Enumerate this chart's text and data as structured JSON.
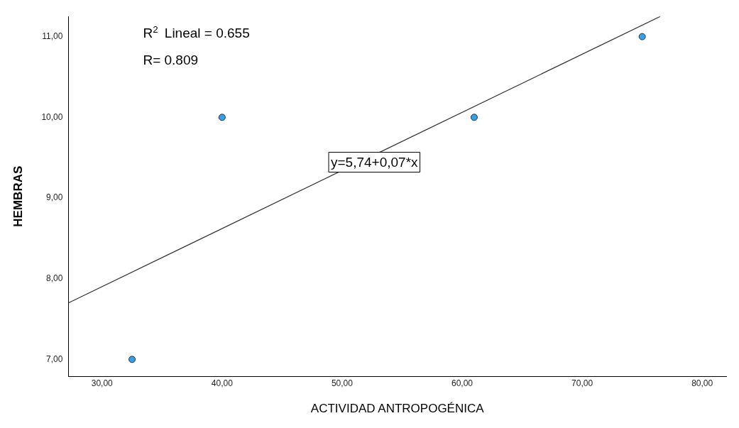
{
  "chart_data": {
    "type": "scatter",
    "xlabel": "ACTIVIDAD ANTROPOGÉNICA",
    "ylabel": "HEMBRAS",
    "marker": "circle",
    "grid": false,
    "legend": false,
    "series": [
      {
        "type": "scatter",
        "color": "#3a9ee4",
        "x": [
          32.5,
          40,
          61,
          75
        ],
        "values": [
          7,
          10,
          10,
          11
        ]
      },
      {
        "type": "line",
        "color": "#333333",
        "marker": "none",
        "x": [
          27.2,
          76.5
        ],
        "values": [
          7.7,
          11.25
        ]
      }
    ],
    "xlim": [
      27.2,
      82
    ],
    "xticks": [
      {
        "value": 30,
        "label": "30,00"
      },
      {
        "value": 40,
        "label": "40,00"
      },
      {
        "value": 50,
        "label": "50,00"
      },
      {
        "value": 60,
        "label": "60,00"
      },
      {
        "value": 70,
        "label": "70,00"
      },
      {
        "value": 80,
        "label": "80,00"
      }
    ],
    "ylim": [
      6.79,
      11.25
    ],
    "yticks": [
      {
        "value": 7,
        "label": "7,00"
      },
      {
        "value": 8,
        "label": "8,00"
      },
      {
        "value": 9,
        "label": "9,00"
      },
      {
        "value": 10,
        "label": "10,00"
      },
      {
        "value": 11,
        "label": "11,00"
      }
    ],
    "annotations": [
      "R$^{2}$ Lineal = 0.655",
      "R= 0.809",
      "y=5,74+0,07*x"
    ]
  }
}
